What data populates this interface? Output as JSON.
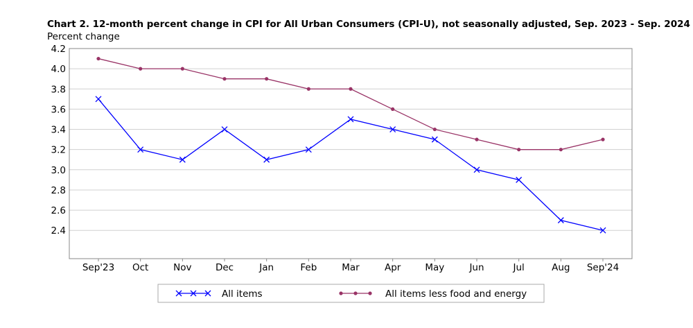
{
  "chart_data": {
    "type": "line",
    "title": "Chart 2. 12-month percent change in CPI for All Urban Consumers (CPI-U), not seasonally adjusted, Sep. 2023 - Sep. 2024",
    "ylabel": "Percent change",
    "xlabel": "",
    "categories": [
      "Sep'23",
      "Oct",
      "Nov",
      "Dec",
      "Jan",
      "Feb",
      "Mar",
      "Apr",
      "May",
      "Jun",
      "Jul",
      "Aug",
      "Sep'24"
    ],
    "ylim": [
      2.12,
      4.2
    ],
    "yticks": [
      "2.4",
      "2.6",
      "2.8",
      "3.0",
      "3.2",
      "3.4",
      "3.6",
      "3.8",
      "4.0",
      "4.2"
    ],
    "grid": true,
    "legend_placement": "bottom",
    "series": [
      {
        "name": "All items",
        "color": "#0000ff",
        "marker": "x",
        "values": [
          3.7,
          3.2,
          3.1,
          3.4,
          3.1,
          3.2,
          3.5,
          3.4,
          3.3,
          3.0,
          2.9,
          2.5,
          2.4
        ]
      },
      {
        "name": "All items less food and energy",
        "color": "#993366",
        "marker": "dot",
        "values": [
          4.1,
          4.0,
          4.0,
          3.9,
          3.9,
          3.8,
          3.8,
          3.6,
          3.4,
          3.3,
          3.2,
          3.2,
          3.3
        ]
      }
    ]
  }
}
